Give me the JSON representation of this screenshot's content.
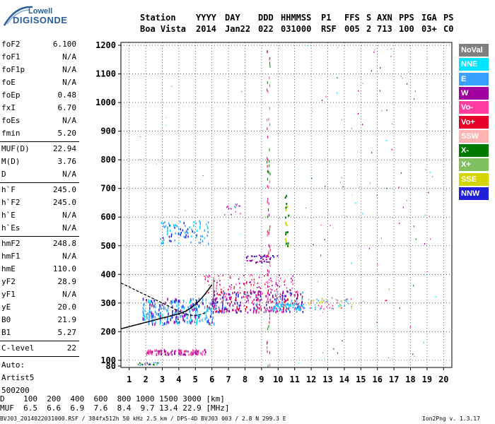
{
  "logo": {
    "line1": "Lowell",
    "line2": "DIGISONDE"
  },
  "header": {
    "labels": [
      "Station",
      "YYYY",
      "DAY",
      "DDD",
      "HHMMSS",
      "P1",
      "FFS",
      "S",
      "AXN",
      "PPS",
      "IGA",
      "PS"
    ],
    "values": [
      "Boa Vista",
      "2014",
      "Jan22",
      "022",
      "031000",
      "RSF",
      "005",
      "2",
      "713",
      "100",
      "03+",
      "C0"
    ]
  },
  "params": [
    {
      "name": "foF2",
      "value": "6.100"
    },
    {
      "name": "foF1",
      "value": "N/A"
    },
    {
      "name": "foF1p",
      "value": "N/A"
    },
    {
      "name": "foE",
      "value": "N/A"
    },
    {
      "name": "foEp",
      "value": "0.48"
    },
    {
      "name": "fxI",
      "value": "6.70"
    },
    {
      "name": "foEs",
      "value": "N/A"
    },
    {
      "name": "fmin",
      "value": "5.20"
    },
    {
      "name": "MUF(D)",
      "value": "22.94"
    },
    {
      "name": "M(D)",
      "value": "3.76"
    },
    {
      "name": "D",
      "value": "N/A"
    },
    {
      "name": "h`F",
      "value": "245.0"
    },
    {
      "name": "h`F2",
      "value": "245.0"
    },
    {
      "name": "h`E",
      "value": "N/A"
    },
    {
      "name": "h`Es",
      "value": "N/A"
    },
    {
      "name": "hmF2",
      "value": "248.8"
    },
    {
      "name": "hmF1",
      "value": "N/A"
    },
    {
      "name": "hmE",
      "value": "110.0"
    },
    {
      "name": "yF2",
      "value": "28.9"
    },
    {
      "name": "yF1",
      "value": "N/A"
    },
    {
      "name": "yE",
      "value": "20.0"
    },
    {
      "name": "B0",
      "value": "21.9"
    },
    {
      "name": "B1",
      "value": "5.27"
    },
    {
      "name": "C-level",
      "value": "22"
    }
  ],
  "auto": {
    "label": "Auto:",
    "artist": "Artist5",
    "code": "500200"
  },
  "chart_data": {
    "type": "scatter",
    "title": "",
    "xlabel": "",
    "ylabel": "",
    "xlim": [
      0.5,
      20.5
    ],
    "ylim": [
      75,
      1210
    ],
    "x_ticks": [
      "1",
      "2",
      "3",
      "4",
      "5",
      "6",
      "7",
      "8",
      "9",
      "10",
      "11",
      "12",
      "13",
      "14",
      "15",
      "16",
      "17",
      "18",
      "19",
      "20"
    ],
    "y_ticks": [
      "80",
      "100",
      "200",
      "300",
      "400",
      "500",
      "600",
      "700",
      "800",
      "900",
      "1000",
      "1100",
      "1200"
    ],
    "grid": true,
    "legend_placement": "right",
    "series": [
      {
        "name": "NoVal",
        "color": "#808080"
      },
      {
        "name": "NNE",
        "color": "#00e5ff"
      },
      {
        "name": "E",
        "color": "#3aa0ff"
      },
      {
        "name": "W",
        "color": "#a000a0"
      },
      {
        "name": "Vo-",
        "color": "#ff3ca0"
      },
      {
        "name": "Vo+",
        "color": "#e8002a"
      },
      {
        "name": "SSW",
        "color": "#ffb4b4"
      },
      {
        "name": "X-",
        "color": "#007a00"
      },
      {
        "name": "X+",
        "color": "#80c060"
      },
      {
        "name": "SSE",
        "color": "#d4d400"
      },
      {
        "name": "NNW",
        "color": "#2020d8"
      }
    ]
  },
  "bottom": {
    "d_row": "D    100  200  400  600  800 1000 1500 3000 [km]",
    "muf_row": "MUF  6.5  6.6  6.9  7.6  8.4  9.7 13.4 22.9 [MHz]",
    "footer_left": "BVJ03_2014022031000.RSF / 384fx512h 50 kHz 2.5 km / DPS-4D BVJ03 003 / 2.8 N 299.3 E",
    "footer_right": "Ion2Png v. 1.3.17"
  }
}
